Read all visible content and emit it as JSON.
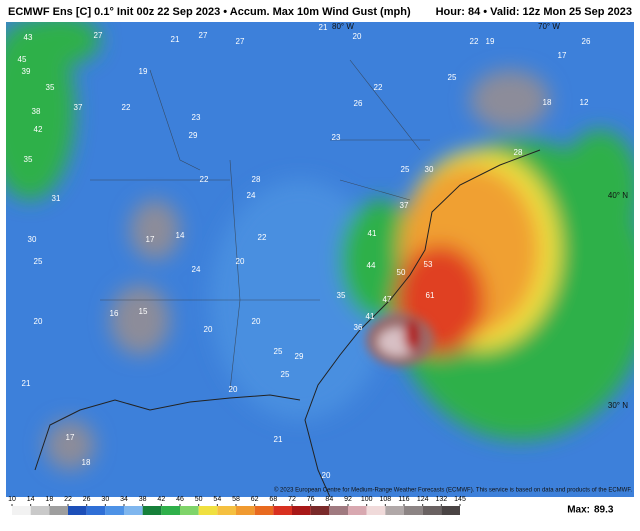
{
  "header": {
    "title": "ECMWF Ens [C] 0.1° Init 00z 22 Sep 2023 • Accum. Max 10m Wind Gust (mph)",
    "valid": "Hour: 84 • Valid: 12z Mon 25 Sep 2023"
  },
  "axis_labels": {
    "lat_40": "40° N",
    "lat_30": "30° N",
    "lon_80": "80° W",
    "lon_70": "70° W"
  },
  "map_labels": [
    43,
    45,
    39,
    35,
    37,
    38,
    42,
    35,
    31,
    30,
    25,
    20,
    21,
    17,
    18,
    27,
    21,
    27,
    27,
    22,
    19,
    23,
    29,
    22,
    28,
    24,
    22,
    20,
    24,
    17,
    14,
    15,
    16,
    20,
    20,
    25,
    29,
    25,
    20,
    21,
    20,
    44,
    50,
    47,
    53,
    61,
    41,
    37,
    35,
    36,
    41,
    25,
    30,
    28,
    26,
    17,
    22,
    19,
    18,
    12,
    23,
    22,
    26,
    25,
    21,
    20
  ],
  "colorbar": {
    "ticks": [
      10,
      14,
      18,
      22,
      26,
      30,
      34,
      38,
      42,
      46,
      50,
      54,
      58,
      62,
      68,
      72,
      76,
      84,
      92,
      100,
      108,
      116,
      124,
      132,
      145
    ],
    "colors": [
      "#f2f2f2",
      "#c9c9c9",
      "#9e9e9e",
      "#1d4fb8",
      "#2f6fd6",
      "#4d92e6",
      "#7fb6ee",
      "#16803a",
      "#2fb04a",
      "#7fd46a",
      "#f0e040",
      "#f5c040",
      "#f09a30",
      "#e86a20",
      "#d83020",
      "#a81818",
      "#7a2a2a",
      "#a07a80",
      "#d8a8b0",
      "#f0dada",
      "#b0a8a8",
      "#8c8484",
      "#6a6262",
      "#4a4444"
    ],
    "max_label": "Max:",
    "max_value": 89.3
  },
  "footer": {
    "copyright": "© 2023 European Centre for Medium-Range Weather Forecasts (ECMWF). This service is based on data and products of the ECMWF."
  }
}
